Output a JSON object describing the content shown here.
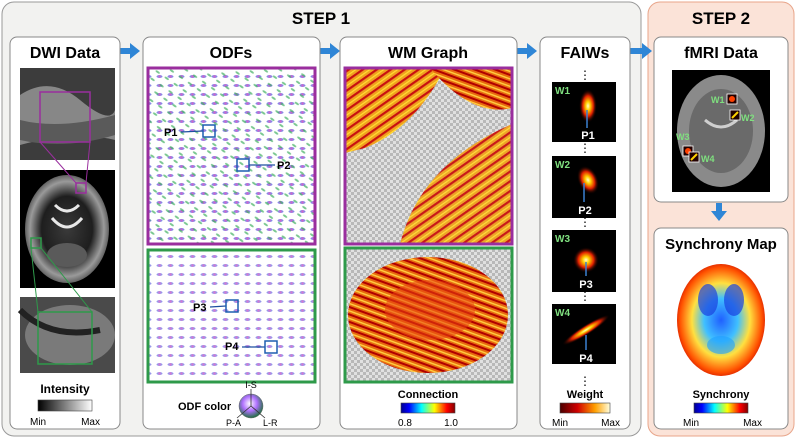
{
  "step1": {
    "title": "STEP 1"
  },
  "step2": {
    "title": "STEP 2"
  },
  "panels": {
    "dwi": "DWI Data",
    "odfs": "ODFs",
    "wm": "WM Graph",
    "faiws": "FAIWs",
    "fmri": "fMRI Data",
    "sync": "Synchrony Map"
  },
  "points": [
    "P1",
    "P2",
    "P3",
    "P4"
  ],
  "windows": [
    "W1",
    "W2",
    "W3",
    "W4"
  ],
  "legends": {
    "intensity": {
      "title": "Intensity",
      "min": "Min",
      "max": "Max"
    },
    "odf": {
      "title": "ODF color",
      "axes": [
        "I-S",
        "P-A",
        "L-R"
      ]
    },
    "connection": {
      "title": "Connection",
      "min": "0.8",
      "max": "1.0"
    },
    "weight": {
      "title": "Weight",
      "min": "Min",
      "max": "Max"
    },
    "synchrony": {
      "title": "Synchrony",
      "min": "Min",
      "max": "Max"
    }
  },
  "ellipsis": "⋮",
  "colors": {
    "step1_bg": "#f2f2f0",
    "step2_bg": "#fbe3d8",
    "step2_border": "#e8a58a",
    "arrow": "#2f86d6",
    "purple": "#9a2e9e",
    "green": "#2e9a4a",
    "label_green": "#7fe07f"
  }
}
